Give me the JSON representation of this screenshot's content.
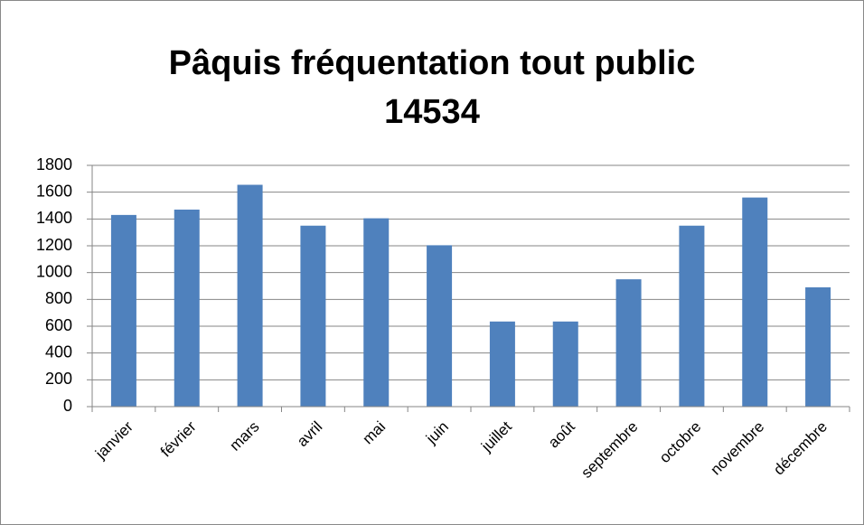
{
  "chart_data": {
    "type": "bar",
    "title": [
      "Pâquis fréquentation tout public",
      "14534"
    ],
    "categories": [
      "janvier",
      "février",
      "mars",
      "avril",
      "mai",
      "juin",
      "juillet",
      "août",
      "septembre",
      "octobre",
      "novembre",
      "décembre"
    ],
    "values": [
      1430,
      1470,
      1655,
      1350,
      1405,
      1204,
      635,
      635,
      950,
      1350,
      1560,
      890
    ],
    "color": "#4f81bd",
    "ylim": [
      0,
      1800
    ],
    "yticks": [
      0,
      200,
      400,
      600,
      800,
      1000,
      1200,
      1400,
      1600,
      1800
    ],
    "grid": true
  }
}
